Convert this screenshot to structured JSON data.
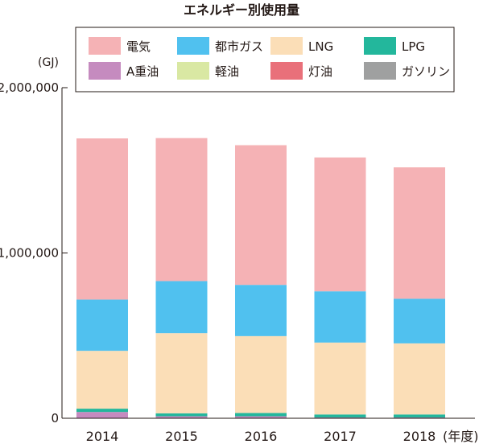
{
  "chart_data": {
    "type": "bar",
    "stacked": true,
    "title": "エネルギー別使用量",
    "unit_label": "(GJ)",
    "x_suffix": "(年度)",
    "categories": [
      "2014",
      "2015",
      "2016",
      "2017",
      "2018"
    ],
    "ylim": [
      0,
      2000000
    ],
    "y_ticks": [
      "0",
      "1,000,000",
      "2,000,000"
    ],
    "y_tick_values": [
      0,
      1000000,
      2000000
    ],
    "grid": false,
    "legend_position": "top",
    "series": [
      {
        "name": "A重油",
        "color": "#c58bbf",
        "values": [
          38000,
          12000,
          12000,
          5000,
          5000
        ]
      },
      {
        "name": "軽油",
        "color": "#d9e8a3",
        "values": [
          0,
          0,
          0,
          0,
          0
        ]
      },
      {
        "name": "灯油",
        "color": "#e9707a",
        "values": [
          0,
          0,
          0,
          0,
          0
        ]
      },
      {
        "name": "ガソリン",
        "color": "#9fa0a0",
        "values": [
          0,
          0,
          0,
          0,
          0
        ]
      },
      {
        "name": "LPG",
        "color": "#23b79c",
        "values": [
          20000,
          18000,
          20000,
          18000,
          18000
        ]
      },
      {
        "name": "LNG",
        "color": "#fbdeb7",
        "values": [
          350000,
          485000,
          465000,
          435000,
          430000
        ]
      },
      {
        "name": "都市ガス",
        "color": "#50c1ef",
        "values": [
          310000,
          315000,
          310000,
          310000,
          270000
        ]
      },
      {
        "name": "電気",
        "color": "#f5b2b5",
        "values": [
          975000,
          865000,
          845000,
          810000,
          795000
        ]
      }
    ],
    "legend_order": [
      "電気",
      "都市ガス",
      "LNG",
      "LPG",
      "A重油",
      "軽油",
      "灯油",
      "ガソリン"
    ]
  }
}
